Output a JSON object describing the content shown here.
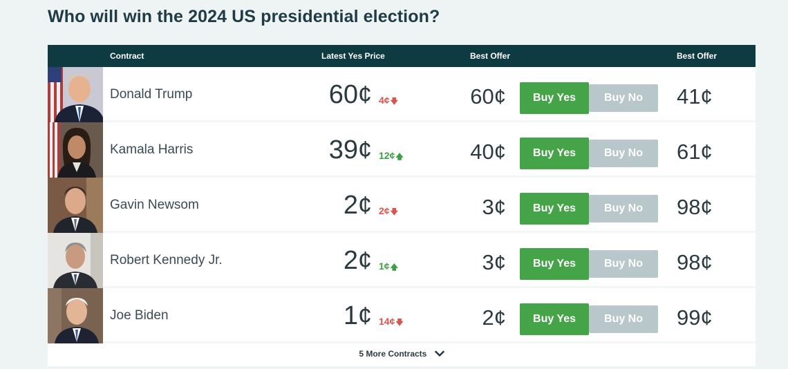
{
  "page": {
    "title": "Who will win the 2024 US presidential election?"
  },
  "table": {
    "headers": {
      "contract": "Contract",
      "latest_yes_price": "Latest Yes Price",
      "best_offer_yes": "Best Offer",
      "best_offer_no": "Best Offer"
    },
    "rows": [
      {
        "name": "Donald Trump",
        "price": "60",
        "change": "4¢",
        "change_dir": "down",
        "best_offer_yes": "60¢",
        "buy_yes": "Buy Yes",
        "buy_no": "Buy No",
        "best_offer_no": "41¢",
        "avatar_icon": "portrait-donald-trump"
      },
      {
        "name": "Kamala Harris",
        "price": "39",
        "change": "12¢",
        "change_dir": "up",
        "best_offer_yes": "40¢",
        "buy_yes": "Buy Yes",
        "buy_no": "Buy No",
        "best_offer_no": "61¢",
        "avatar_icon": "portrait-kamala-harris"
      },
      {
        "name": "Gavin Newsom",
        "price": "2",
        "change": "2¢",
        "change_dir": "down",
        "best_offer_yes": "3¢",
        "buy_yes": "Buy Yes",
        "buy_no": "Buy No",
        "best_offer_no": "98¢",
        "avatar_icon": "portrait-gavin-newsom"
      },
      {
        "name": "Robert Kennedy Jr.",
        "price": "2",
        "change": "1¢",
        "change_dir": "up",
        "best_offer_yes": "3¢",
        "buy_yes": "Buy Yes",
        "buy_no": "Buy No",
        "best_offer_no": "98¢",
        "avatar_icon": "portrait-robert-kennedy-jr"
      },
      {
        "name": "Joe Biden",
        "price": "1",
        "change": "14¢",
        "change_dir": "down",
        "best_offer_yes": "2¢",
        "buy_yes": "Buy Yes",
        "buy_no": "Buy No",
        "best_offer_no": "99¢",
        "avatar_icon": "portrait-joe-biden"
      }
    ],
    "more_contracts": "5 More Contracts",
    "cent_symbol": "¢",
    "arrow_down": "🡇",
    "arrow_up": "🡅"
  },
  "colors": {
    "header_bg": "#0d3b41",
    "buy_yes": "#44a447",
    "buy_no": "#b8c7c9",
    "down": "#d9534f",
    "up": "#3aa042"
  }
}
